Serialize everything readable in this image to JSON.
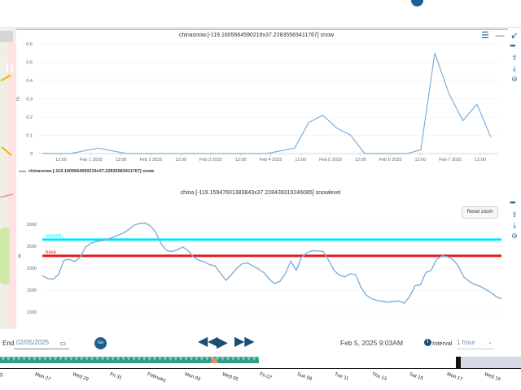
{
  "panel_controls": {
    "list_icon": "list-icon",
    "minimize_icon": "minimize-icon",
    "collapse_icon": "collapse-icon"
  },
  "chart_data": [
    {
      "type": "line",
      "title": "chinasnow.[-119.1605664590219x37.22835583411767] snow",
      "xlabel": "",
      "ylabel": "m",
      "ylim": [
        0,
        0.6
      ],
      "yticks": [
        "0",
        "0.1",
        "0.2",
        "0.3",
        "0.4",
        "0.5",
        "0.6"
      ],
      "xticks": [
        "12:00",
        "Feb 1 2025",
        "12:00",
        "Feb 2 2025",
        "12:00",
        "Feb 3 2025",
        "12:00",
        "Feb 4 2025",
        "12:00",
        "Feb 5 2025",
        "12:00",
        "Feb 6 2025",
        "12:00",
        "Feb 7 2025",
        "12:00"
      ],
      "grid": true,
      "legend": "bottom-left",
      "series": [
        {
          "name": "chinasnow.[-119.1605664590219x37.22835583411767] snow",
          "color": "#7eb0d8",
          "x": [
            "2025-01-31T00:00",
            "2025-01-31T12:00",
            "2025-02-01T00:00",
            "2025-02-01T12:00",
            "2025-02-02T00:00",
            "2025-02-02T12:00",
            "2025-02-03T00:00",
            "2025-02-03T12:00",
            "2025-02-04T00:00",
            "2025-02-04T12:00",
            "2025-02-04T18:00",
            "2025-02-05T00:00",
            "2025-02-05T06:00",
            "2025-02-05T12:00",
            "2025-02-05T18:00",
            "2025-02-06T00:00",
            "2025-02-06T12:00",
            "2025-02-06T18:00",
            "2025-02-07T00:00",
            "2025-02-07T06:00",
            "2025-02-07T12:00",
            "2025-02-07T18:00",
            "2025-02-08T00:00"
          ],
          "y": [
            0,
            0,
            0.03,
            0,
            0,
            0,
            0,
            0,
            0,
            0.03,
            0.17,
            0.21,
            0.14,
            0.1,
            0,
            0,
            0,
            0.02,
            0.55,
            0.33,
            0.18,
            0.27,
            0.09
          ]
        }
      ]
    },
    {
      "type": "line",
      "title": "china.[-119.15947601383843x37.2284393192460​85] snowlevel",
      "xlabel": "",
      "ylabel": "m",
      "ylim": [
        1000,
        3000
      ],
      "yticks": [
        "1000",
        "1500",
        "2000",
        "2500",
        "3000"
      ],
      "reference_lines": [
        {
          "label": "summit",
          "value": 2650,
          "color": "#00e5ff"
        },
        {
          "label": "base",
          "value": 2280,
          "color": "#e01b1b"
        }
      ],
      "series": [
        {
          "name": "snowlevel",
          "color": "#7eb0d8",
          "y": [
            1830,
            1760,
            1750,
            1850,
            2180,
            2200,
            2150,
            2250,
            2480,
            2570,
            2610,
            2620,
            2650,
            2700,
            2750,
            2800,
            2880,
            2980,
            3020,
            3030,
            2960,
            2820,
            2550,
            2400,
            2380,
            2420,
            2480,
            2400,
            2250,
            2180,
            2140,
            2080,
            2050,
            1880,
            1720,
            1850,
            2000,
            2100,
            2120,
            2050,
            1980,
            1900,
            1750,
            1650,
            1700,
            1880,
            2160,
            1950,
            2250,
            2350,
            2400,
            2390,
            2380,
            2180,
            1950,
            1840,
            1800,
            1870,
            1850,
            1560,
            1380,
            1300,
            1260,
            1240,
            1220,
            1240,
            1250,
            1200,
            1350,
            1600,
            1620,
            1900,
            1950,
            2200,
            2280,
            2260,
            2200,
            2050,
            1800,
            1700,
            1630,
            1590,
            1520,
            1450,
            1350,
            1300
          ]
        }
      ]
    }
  ],
  "reset_zoom_label": "Reset zoom",
  "right_toolbar": {
    "more_icon": "more-icon",
    "share_icon": "share-icon",
    "download_icon": "download-icon",
    "zoom_out_icon": "zoom-out-icon"
  },
  "controls": {
    "end_label": "End",
    "end_value": "02/05/2025",
    "go_label": "Go",
    "current_time": "Feb 5, 2025 9:03AM",
    "interval_label": "Interval",
    "interval_value": "1 hour"
  },
  "timeline": {
    "labels": [
      "25",
      "Mon 27",
      "Wed 29",
      "Fri 31",
      "February",
      "Mon 03",
      "Wed 05",
      "Fri 07",
      "Sun 09",
      "Tue 11",
      "Thu 13",
      "Sat 15",
      "Mon 17",
      "Wed 19",
      "F"
    ]
  }
}
